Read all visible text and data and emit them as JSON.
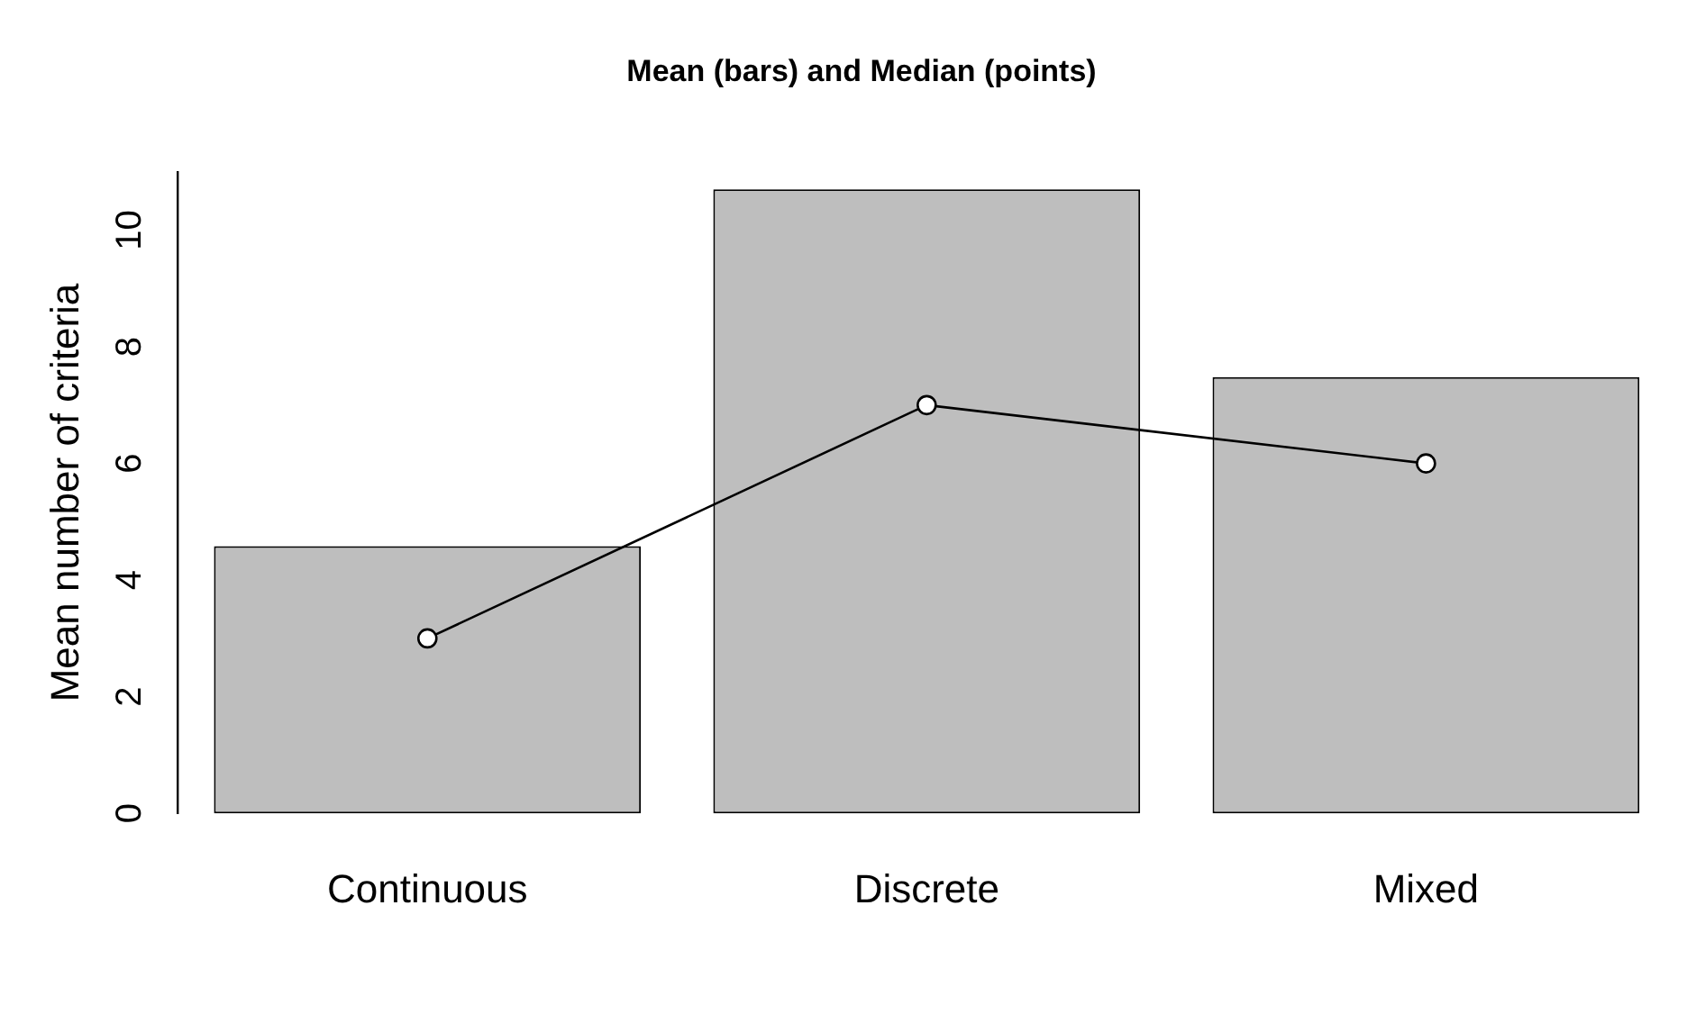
{
  "chart_data": {
    "type": "bar",
    "title": "Mean (bars) and Median (points)",
    "ylabel": "Mean number of criteria",
    "categories": [
      "Continuous",
      "Discrete",
      "Mixed"
    ],
    "series": [
      {
        "color": "#bebebe",
        "values": [
          4.58,
          10.7,
          7.48
        ]
      },
      {
        "type": "line",
        "color": "#000000",
        "values": [
          3,
          7,
          6
        ]
      }
    ],
    "ylim": [
      0,
      11
    ],
    "yticks": [
      0,
      2,
      4,
      6,
      8,
      10
    ],
    "grid": false,
    "legend": false,
    "marker": "circle",
    "line_style": "solid"
  }
}
